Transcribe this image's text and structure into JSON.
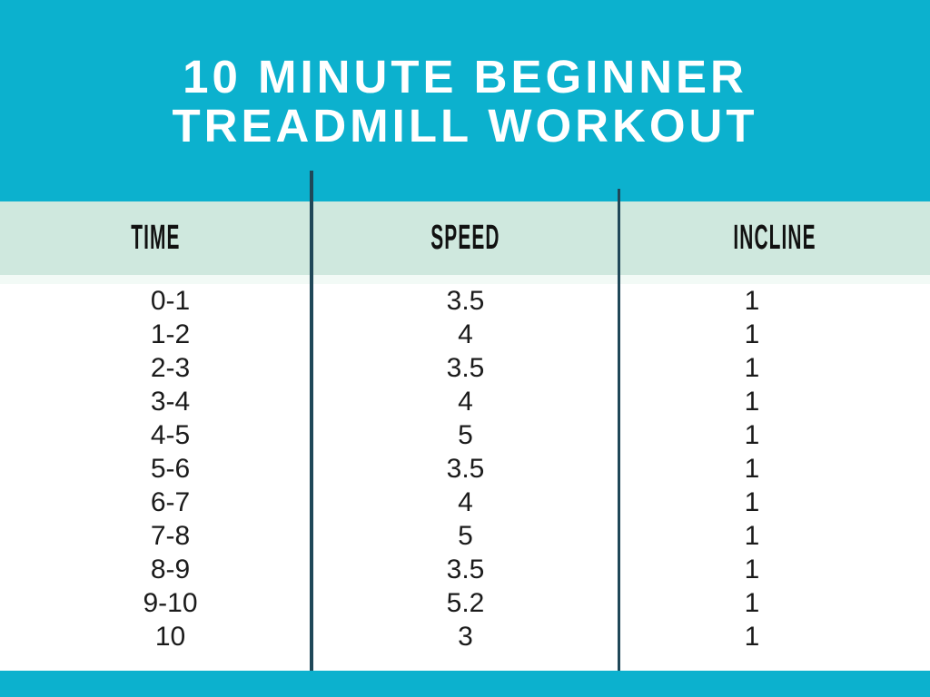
{
  "poster": {
    "title_line1": "10 MINUTE BEGINNER",
    "title_line2": "TREADMILL WORKOUT"
  },
  "chart_data": {
    "type": "table",
    "title": "10 MINUTE BEGINNER TREADMILL WORKOUT",
    "columns": [
      "TIME",
      "SPEED",
      "INCLINE"
    ],
    "rows": [
      [
        "0-1",
        "3.5",
        "1"
      ],
      [
        "1-2",
        "4",
        "1"
      ],
      [
        "2-3",
        "3.5",
        "1"
      ],
      [
        "3-4",
        "4",
        "1"
      ],
      [
        "4-5",
        "5",
        "1"
      ],
      [
        "5-6",
        "3.5",
        "1"
      ],
      [
        "6-7",
        "4",
        "1"
      ],
      [
        "7-8",
        "5",
        "1"
      ],
      [
        "8-9",
        "3.5",
        "1"
      ],
      [
        "9-10",
        "5.2",
        "1"
      ],
      [
        "10",
        "3",
        "1"
      ]
    ]
  },
  "colors": {
    "accent_cyan": "#0cb1ce",
    "header_mint": "#cfe8de",
    "divider_navy": "#1f4758",
    "title_text": "#ffffff",
    "body_text": "#1b1b1b"
  }
}
